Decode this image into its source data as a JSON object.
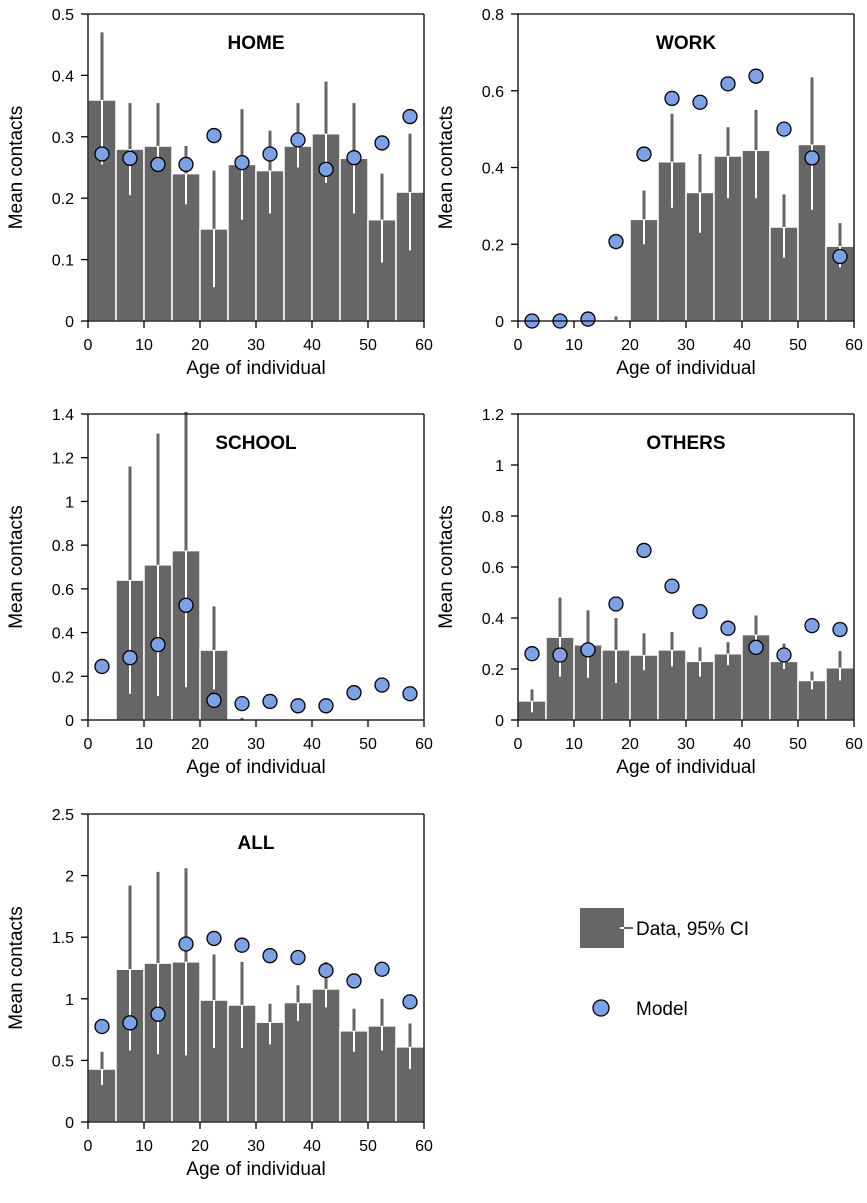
{
  "colors": {
    "bar": "#666666",
    "bar_edge": "#ffffff",
    "ci_upper": "#666666",
    "ci_lower": "#ffffff",
    "model_fill": "#7ba2e6",
    "model_edge": "#000000",
    "axis": "#000000"
  },
  "legend": {
    "data_label": "Data, 95% CI",
    "model_label": "Model"
  },
  "chart_data": [
    {
      "type": "bar",
      "title": "HOME",
      "xlabel": "Age of individual",
      "ylabel": "Mean contacts",
      "xlim": [
        0,
        60
      ],
      "ylim": [
        0,
        0.5
      ],
      "xticks": [
        "0",
        "10",
        "20",
        "30",
        "40",
        "50",
        "60"
      ],
      "yticks": [
        "0",
        "0.1",
        "0.2",
        "0.3",
        "0.4",
        "0.5"
      ],
      "bin_starts": [
        0,
        5,
        10,
        15,
        20,
        25,
        30,
        35,
        40,
        45,
        50,
        55
      ],
      "model_x": [
        2.5,
        7.5,
        12.5,
        17.5,
        22.5,
        27.5,
        32.5,
        37.5,
        42.5,
        47.5,
        52.5,
        57.5
      ],
      "series": [
        {
          "name": "Data, 95% CI",
          "values": [
            0.36,
            0.28,
            0.285,
            0.24,
            0.15,
            0.255,
            0.245,
            0.285,
            0.305,
            0.265,
            0.165,
            0.21
          ],
          "ci_low": [
            0.255,
            0.205,
            0.245,
            0.19,
            0.055,
            0.165,
            0.175,
            0.25,
            0.225,
            0.175,
            0.095,
            0.115
          ],
          "ci_high": [
            0.47,
            0.355,
            0.355,
            0.285,
            0.245,
            0.345,
            0.31,
            0.355,
            0.39,
            0.355,
            0.24,
            0.305
          ]
        },
        {
          "name": "Model",
          "values": [
            0.272,
            0.265,
            0.255,
            0.255,
            0.302,
            0.258,
            0.272,
            0.295,
            0.247,
            0.266,
            0.29,
            0.333
          ]
        }
      ]
    },
    {
      "type": "bar",
      "title": "WORK",
      "xlabel": "Age of individual",
      "ylabel": "Mean contacts",
      "xlim": [
        0,
        60
      ],
      "ylim": [
        0,
        0.8
      ],
      "xticks": [
        "0",
        "10",
        "20",
        "30",
        "40",
        "50",
        "60"
      ],
      "yticks": [
        "0",
        "0.2",
        "0.4",
        "0.6",
        "0.8"
      ],
      "bin_starts": [
        0,
        5,
        10,
        15,
        20,
        25,
        30,
        35,
        40,
        45,
        50,
        55
      ],
      "model_x": [
        2.5,
        7.5,
        12.5,
        17.5,
        22.5,
        27.5,
        32.5,
        37.5,
        42.5,
        47.5,
        52.5,
        57.5
      ],
      "series": [
        {
          "name": "Data, 95% CI",
          "values": [
            0,
            0,
            0,
            0.002,
            0.265,
            0.415,
            0.335,
            0.43,
            0.445,
            0.245,
            0.46,
            0.195
          ],
          "ci_low": [
            0,
            0,
            0,
            0,
            0.2,
            0.295,
            0.23,
            0.32,
            0.32,
            0.165,
            0.29,
            0.14
          ],
          "ci_high": [
            0,
            0,
            0,
            0.012,
            0.34,
            0.54,
            0.435,
            0.505,
            0.55,
            0.33,
            0.635,
            0.255
          ]
        },
        {
          "name": "Model",
          "values": [
            0,
            0,
            0.005,
            0.207,
            0.435,
            0.58,
            0.57,
            0.618,
            0.638,
            0.5,
            0.425,
            0.168
          ]
        }
      ]
    },
    {
      "type": "bar",
      "title": "SCHOOL",
      "xlabel": "Age of individual",
      "ylabel": "Mean contacts",
      "xlim": [
        0,
        60
      ],
      "ylim": [
        0,
        1.4
      ],
      "xticks": [
        "0",
        "10",
        "20",
        "30",
        "40",
        "50",
        "60"
      ],
      "yticks": [
        "0",
        "0.2",
        "0.4",
        "0.6",
        "0.8",
        "1",
        "1.2",
        "1.4"
      ],
      "bin_starts": [
        0,
        5,
        10,
        15,
        20,
        25,
        30,
        35,
        40,
        45,
        50,
        55
      ],
      "model_x": [
        2.5,
        7.5,
        12.5,
        17.5,
        22.5,
        27.5,
        32.5,
        37.5,
        42.5,
        47.5,
        52.5,
        57.5
      ],
      "series": [
        {
          "name": "Data, 95% CI",
          "values": [
            0,
            0.64,
            0.71,
            0.775,
            0.32,
            0,
            0,
            0,
            0,
            0,
            0,
            0
          ],
          "ci_low": [
            0,
            0.12,
            0.11,
            0.15,
            0.14,
            0,
            0,
            0,
            0,
            0,
            0,
            0
          ],
          "ci_high": [
            0,
            1.16,
            1.31,
            1.41,
            0.52,
            0.01,
            0,
            0,
            0,
            0,
            0,
            0
          ]
        },
        {
          "name": "Model",
          "values": [
            0.245,
            0.285,
            0.345,
            0.525,
            0.09,
            0.075,
            0.085,
            0.065,
            0.065,
            0.125,
            0.16,
            0.12
          ]
        }
      ]
    },
    {
      "type": "bar",
      "title": "OTHERS",
      "xlabel": "Age of individual",
      "ylabel": "Mean contacts",
      "xlim": [
        0,
        60
      ],
      "ylim": [
        0,
        1.2
      ],
      "xticks": [
        "0",
        "10",
        "20",
        "30",
        "40",
        "50",
        "60"
      ],
      "yticks": [
        "0",
        "0.2",
        "0.4",
        "0.6",
        "0.8",
        "1",
        "1.2"
      ],
      "bin_starts": [
        0,
        5,
        10,
        15,
        20,
        25,
        30,
        35,
        40,
        45,
        50,
        55
      ],
      "model_x": [
        2.5,
        7.5,
        12.5,
        17.5,
        22.5,
        27.5,
        32.5,
        37.5,
        42.5,
        47.5,
        52.5,
        57.5
      ],
      "series": [
        {
          "name": "Data, 95% CI",
          "values": [
            0.075,
            0.325,
            0.295,
            0.275,
            0.255,
            0.275,
            0.23,
            0.26,
            0.335,
            0.23,
            0.155,
            0.205
          ],
          "ci_low": [
            0.03,
            0.17,
            0.165,
            0.145,
            0.195,
            0.21,
            0.17,
            0.215,
            0.29,
            0.2,
            0.12,
            0.155
          ],
          "ci_high": [
            0.12,
            0.48,
            0.43,
            0.4,
            0.34,
            0.345,
            0.285,
            0.305,
            0.41,
            0.3,
            0.19,
            0.27
          ]
        },
        {
          "name": "Model",
          "values": [
            0.26,
            0.255,
            0.275,
            0.455,
            0.665,
            0.525,
            0.425,
            0.36,
            0.285,
            0.255,
            0.37,
            0.355
          ]
        }
      ]
    },
    {
      "type": "bar",
      "title": "ALL",
      "xlabel": "Age of individual",
      "ylabel": "Mean contacts",
      "xlim": [
        0,
        60
      ],
      "ylim": [
        0,
        2.5
      ],
      "xticks": [
        "0",
        "10",
        "20",
        "30",
        "40",
        "50",
        "60"
      ],
      "yticks": [
        "0",
        "0.5",
        "1",
        "1.5",
        "2",
        "2.5"
      ],
      "bin_starts": [
        0,
        5,
        10,
        15,
        20,
        25,
        30,
        35,
        40,
        45,
        50,
        55
      ],
      "model_x": [
        2.5,
        7.5,
        12.5,
        17.5,
        22.5,
        27.5,
        32.5,
        37.5,
        42.5,
        47.5,
        52.5,
        57.5
      ],
      "series": [
        {
          "name": "Data, 95% CI",
          "values": [
            0.43,
            1.24,
            1.29,
            1.3,
            0.99,
            0.95,
            0.81,
            0.97,
            1.08,
            0.74,
            0.78,
            0.61
          ],
          "ci_low": [
            0.3,
            0.58,
            0.55,
            0.54,
            0.6,
            0.6,
            0.63,
            0.82,
            0.93,
            0.57,
            0.58,
            0.43
          ],
          "ci_high": [
            0.57,
            1.92,
            2.03,
            2.06,
            1.36,
            1.3,
            0.96,
            1.11,
            1.3,
            0.92,
            1.0,
            0.8
          ]
        },
        {
          "name": "Model",
          "values": [
            0.775,
            0.805,
            0.875,
            1.445,
            1.49,
            1.435,
            1.35,
            1.335,
            1.23,
            1.145,
            1.24,
            0.975
          ]
        }
      ]
    }
  ]
}
